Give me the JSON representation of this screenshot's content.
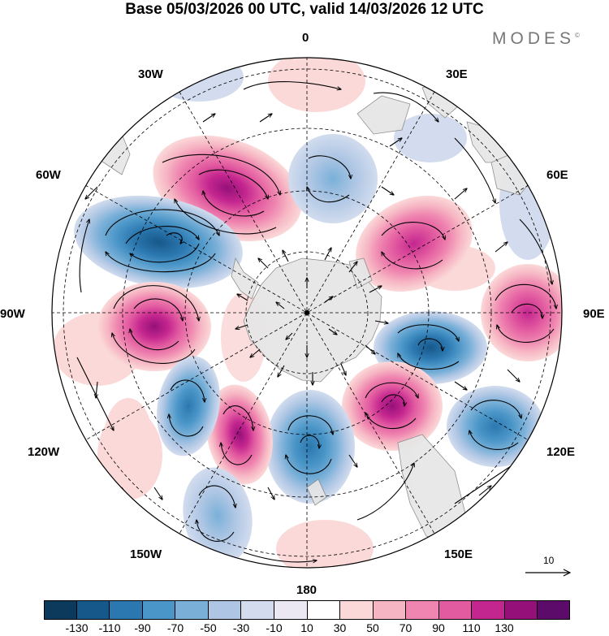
{
  "title": "Base 05/03/2026 00 UTC, valid 14/03/2026 12 UTC",
  "brand": "MODES",
  "brand_mark": "©",
  "longitude_labels": {
    "lon_0": "0",
    "lon_30e": "30E",
    "lon_60e": "60E",
    "lon_90e": "90E",
    "lon_120e": "120E",
    "lon_150e": "150E",
    "lon_180": "180",
    "lon_150w": "150W",
    "lon_120w": "120W",
    "lon_90w": "90W",
    "lon_60w": "60W",
    "lon_30w": "30W"
  },
  "reference_vector": "10",
  "colorbar": {
    "colors": [
      "#0b3a5c",
      "#17588a",
      "#2b78b0",
      "#4b96c8",
      "#7ab0d8",
      "#aec6e4",
      "#d2dcee",
      "#ebe8f4",
      "#ffffff",
      "#fbd9d9",
      "#f6b5c3",
      "#ef85b0",
      "#e25aa0",
      "#c4268f",
      "#961079",
      "#5d0b6a"
    ],
    "tick_labels": [
      "-130",
      "-110",
      "-90",
      "-70",
      "-50",
      "-30",
      "-10",
      "10",
      "30",
      "50",
      "70",
      "90",
      "110",
      "130"
    ]
  },
  "anomaly_centers": [
    {
      "name": "south-atlantic-positive",
      "value": 120,
      "color": "#c4268f"
    },
    {
      "name": "weddell-negative",
      "value": -130,
      "color": "#17588a"
    },
    {
      "name": "bellingshausen-positive",
      "value": 110,
      "color": "#c4268f"
    },
    {
      "name": "indian-negative",
      "value": -40,
      "color": "#aec6e4"
    },
    {
      "name": "indian-positive",
      "value": 70,
      "color": "#ef85b0"
    },
    {
      "name": "east-indian-positive",
      "value": 80,
      "color": "#e25aa0"
    },
    {
      "name": "wilkes-negative",
      "value": -100,
      "color": "#2b78b0"
    },
    {
      "name": "ross-positive",
      "value": 110,
      "color": "#c4268f"
    },
    {
      "name": "ross-negative",
      "value": -80,
      "color": "#4b96c8"
    },
    {
      "name": "amundsen-positive",
      "value": 100,
      "color": "#c4268f"
    },
    {
      "name": "pacific-negative",
      "value": -80,
      "color": "#4b96c8"
    },
    {
      "name": "tasman-negative",
      "value": -90,
      "color": "#2b78b0"
    },
    {
      "name": "south-pacific-negative",
      "value": -70,
      "color": "#7ab0d8"
    }
  ]
}
